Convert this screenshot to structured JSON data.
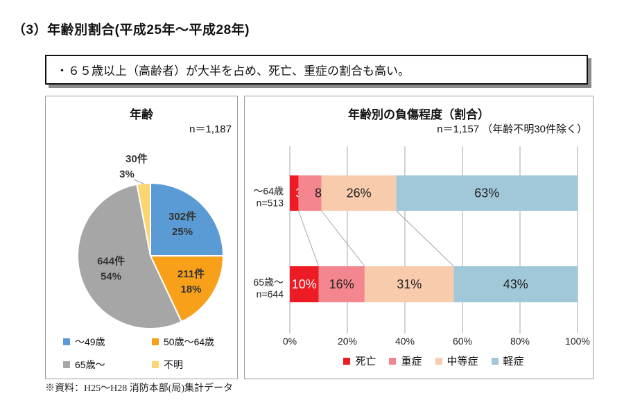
{
  "page": {
    "title": "（3）年齢別割合(平成25年～平成28年)",
    "callout": "・６５歳以上（高齢者）が大半を占め、死亡、重症の割合も高い。",
    "source_note": "※資料：H25～H28 消防本部(局)集計データ"
  },
  "chart_data": [
    {
      "type": "pie",
      "title": "年齢",
      "n_label": "n＝1,187",
      "n_total": 1187,
      "legend_position": "bottom",
      "slices": [
        {
          "label": "～49歳",
          "count": 302,
          "count_label": "302件",
          "pct_label": "25%",
          "value": 25,
          "color": "#5b9bd5"
        },
        {
          "label": "50歳～64歳",
          "count": 211,
          "count_label": "211件",
          "pct_label": "18%",
          "value": 18,
          "color": "#f9a01b"
        },
        {
          "label": "65歳～",
          "count": 644,
          "count_label": "644件",
          "pct_label": "54%",
          "value": 54,
          "color": "#a6a6a6"
        },
        {
          "label": "不明",
          "count": 30,
          "count_label": "30件",
          "pct_label": "3%",
          "value": 3,
          "color": "#fbd571"
        }
      ]
    },
    {
      "type": "stacked-bar-horizontal",
      "title": "年齢別の負傷程度（割合）",
      "n_label": "n＝1,157 （年齢不明30件除く）",
      "n_total": 1157,
      "categories": [
        {
          "label": "～64歳",
          "n_label": "n=513",
          "n": 513,
          "values": [
            3,
            8,
            26,
            63
          ]
        },
        {
          "label": "65歳～",
          "n_label": "n=644",
          "n": 644,
          "values": [
            10,
            16,
            31,
            43
          ]
        }
      ],
      "series": [
        "死亡",
        "重症",
        "中等症",
        "軽症"
      ],
      "series_colors": [
        "#ed1c24",
        "#f4868f",
        "#f8cbad",
        "#a0c8d9"
      ],
      "label_text_colors": [
        "#ffffff",
        "#222222",
        "#222222",
        "#222222"
      ],
      "value_suffix": "%",
      "x_ticks": [
        "0%",
        "20%",
        "40%",
        "60%",
        "80%",
        "100%"
      ],
      "xlim": [
        0,
        100
      ],
      "grid": true,
      "gridline_color": "#a6a6a6",
      "legend_position": "bottom"
    }
  ]
}
